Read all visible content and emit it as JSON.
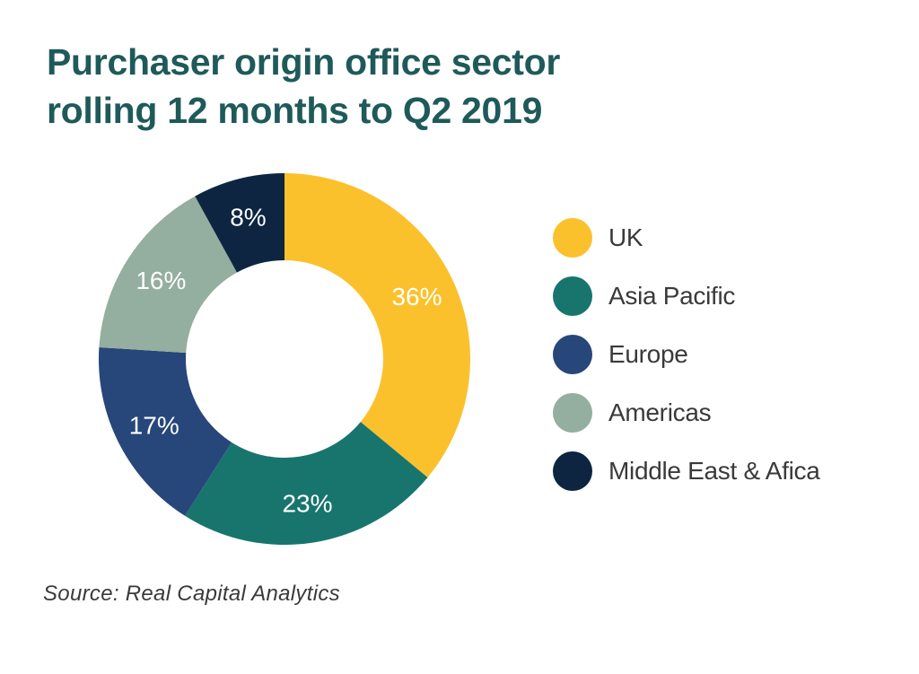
{
  "chart_title": {
    "line1": "Purchaser origin office sector",
    "line2": "rolling 12 months to Q2 2019"
  },
  "chart_data": {
    "type": "pie",
    "variant": "donut",
    "categories": [
      "UK",
      "Asia Pacific",
      "Europe",
      "Americas",
      "Middle East & Afica"
    ],
    "values": [
      36,
      23,
      17,
      16,
      8
    ],
    "value_labels": [
      "36%",
      "23%",
      "17%",
      "16%",
      "8%"
    ],
    "unit": "%",
    "colors": [
      "#fbc12c",
      "#17756e",
      "#27467a",
      "#94ae9f",
      "#0d2541"
    ],
    "label_color": "#ffffff",
    "legend_position": "right"
  },
  "source": "Source: Real Capital Analytics"
}
